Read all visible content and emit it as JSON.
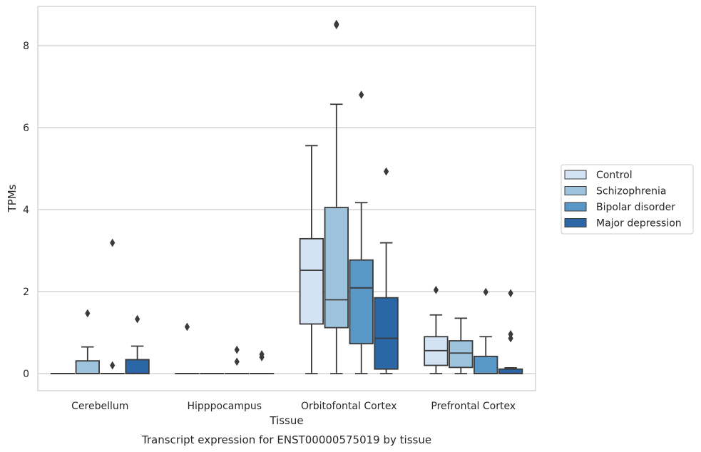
{
  "chart_data": {
    "type": "boxplot",
    "caption": "Transcript expression for ENST00000575019 by tissue",
    "xlabel": "Tissue",
    "ylabel": "TPMs",
    "ylim": [
      -0.42,
      8.97
    ],
    "yticks": [
      0,
      2,
      4,
      6,
      8
    ],
    "grid": "horizontal",
    "legend_position": "right",
    "categories": [
      "Cerebellum",
      "Hipppocampus",
      "Orbitofontal Cortex",
      "Prefrontal Cortex"
    ],
    "series": [
      {
        "name": "Control",
        "color": "#d4e3f3",
        "boxes": [
          {
            "q1": 0,
            "median": 0,
            "q3": 0,
            "whislo": 0,
            "whishi": 0,
            "fliers": []
          },
          {
            "q1": 0,
            "median": 0,
            "q3": 0,
            "whislo": 0,
            "whishi": 0,
            "fliers": [
              1.14
            ]
          },
          {
            "q1": 1.21,
            "median": 2.52,
            "q3": 3.29,
            "whislo": 0,
            "whishi": 5.56,
            "fliers": []
          },
          {
            "q1": 0.2,
            "median": 0.56,
            "q3": 0.9,
            "whislo": 0,
            "whishi": 1.43,
            "fliers": [
              2.04
            ]
          }
        ]
      },
      {
        "name": "Schizophrenia",
        "color": "#9dc3dd",
        "boxes": [
          {
            "q1": 0,
            "median": 0,
            "q3": 0.31,
            "whislo": 0,
            "whishi": 0.65,
            "fliers": [
              1.47
            ]
          },
          {
            "q1": 0,
            "median": 0,
            "q3": 0,
            "whislo": 0,
            "whishi": 0,
            "fliers": []
          },
          {
            "q1": 1.12,
            "median": 1.8,
            "q3": 4.05,
            "whislo": 0,
            "whishi": 6.57,
            "fliers": [
              8.5,
              8.53
            ]
          },
          {
            "q1": 0.15,
            "median": 0.5,
            "q3": 0.8,
            "whislo": 0,
            "whishi": 1.35,
            "fliers": []
          }
        ]
      },
      {
        "name": "Bipolar disorder",
        "color": "#5897c6",
        "boxes": [
          {
            "q1": 0,
            "median": 0,
            "q3": 0,
            "whislo": 0,
            "whishi": 0,
            "fliers": [
              0.2,
              3.19
            ]
          },
          {
            "q1": 0,
            "median": 0,
            "q3": 0,
            "whislo": 0,
            "whishi": 0,
            "fliers": [
              0.29,
              0.58
            ]
          },
          {
            "q1": 0.73,
            "median": 2.09,
            "q3": 2.77,
            "whislo": 0,
            "whishi": 4.17,
            "fliers": [
              6.8
            ]
          },
          {
            "q1": 0,
            "median": 0,
            "q3": 0.42,
            "whislo": 0,
            "whishi": 0.9,
            "fliers": [
              1.99
            ]
          }
        ]
      },
      {
        "name": "Major depression",
        "color": "#2b67a6",
        "boxes": [
          {
            "q1": 0,
            "median": 0,
            "q3": 0.34,
            "whislo": 0,
            "whishi": 0.67,
            "fliers": [
              1.33
            ]
          },
          {
            "q1": 0,
            "median": 0,
            "q3": 0,
            "whislo": 0,
            "whishi": 0,
            "fliers": [
              0.4,
              0.47
            ]
          },
          {
            "q1": 0.11,
            "median": 0.86,
            "q3": 1.85,
            "whislo": 0,
            "whishi": 3.19,
            "fliers": [
              4.93
            ]
          },
          {
            "q1": 0,
            "median": 0,
            "q3": 0.11,
            "whislo": 0,
            "whishi": 0.14,
            "fliers": [
              0.86,
              0.96,
              1.96
            ]
          }
        ]
      }
    ]
  }
}
